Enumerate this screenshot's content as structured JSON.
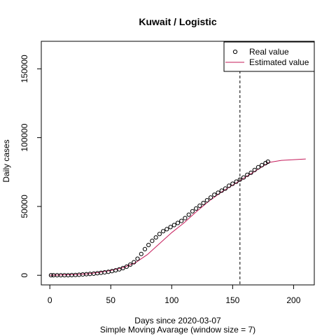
{
  "chart_data": {
    "type": "line",
    "title": "Kuwait / Logistic",
    "xlabel": "Days since 2020-03-07",
    "subtitle": "Simple Moving Avarage (window size = 7)",
    "ylabel": "Daily cases",
    "xlim": [
      -7,
      217
    ],
    "ylim": [
      -7000,
      170000
    ],
    "xticks": [
      0,
      50,
      100,
      150,
      200
    ],
    "xtick_labels": [
      "0",
      "50",
      "100",
      "150",
      "200"
    ],
    "yticks": [
      0,
      50000,
      100000,
      150000
    ],
    "ytick_labels": [
      "0",
      "50000",
      "100000",
      "150000"
    ],
    "vline_x": 156,
    "legend_position": "top-right",
    "series": [
      {
        "name": "Real value",
        "style": "points",
        "color": "#000000",
        "x": [
          1,
          3,
          6,
          9,
          12,
          15,
          18,
          21,
          24,
          27,
          30,
          33,
          36,
          39,
          42,
          45,
          48,
          51,
          54,
          57,
          60,
          63,
          66,
          69,
          72,
          75,
          78,
          81,
          84,
          87,
          90,
          93,
          96,
          99,
          102,
          105,
          108,
          111,
          114,
          117,
          120,
          123,
          126,
          129,
          132,
          135,
          138,
          141,
          144,
          147,
          150,
          153,
          156,
          159,
          162,
          165,
          168,
          171,
          174,
          177,
          179
        ],
        "y": [
          0,
          0,
          0,
          0,
          0,
          0,
          100,
          200,
          400,
          600,
          800,
          1000,
          1200,
          1500,
          1800,
          2100,
          2500,
          3000,
          3600,
          4300,
          5200,
          6300,
          7700,
          9500,
          12000,
          15500,
          19000,
          22000,
          25000,
          27500,
          30000,
          32000,
          33500,
          35000,
          36500,
          38000,
          39500,
          41500,
          44000,
          46500,
          48500,
          50500,
          52500,
          54500,
          56500,
          58500,
          60000,
          61500,
          63000,
          65000,
          66500,
          68000,
          69500,
          71000,
          73000,
          74500,
          76500,
          78500,
          80000,
          81500,
          82500
        ]
      },
      {
        "name": "Estimated value",
        "style": "line",
        "color": "#c51b5a",
        "x": [
          0,
          10,
          20,
          30,
          40,
          50,
          60,
          70,
          80,
          90,
          100,
          110,
          120,
          130,
          140,
          150,
          160,
          170,
          180,
          190,
          200,
          210
        ],
        "y": [
          0,
          200,
          500,
          1000,
          2000,
          3500,
          5500,
          9000,
          15000,
          23000,
          31000,
          38000,
          46000,
          53500,
          60000,
          65500,
          71000,
          76500,
          82000,
          83500,
          84000,
          84500
        ]
      }
    ]
  }
}
